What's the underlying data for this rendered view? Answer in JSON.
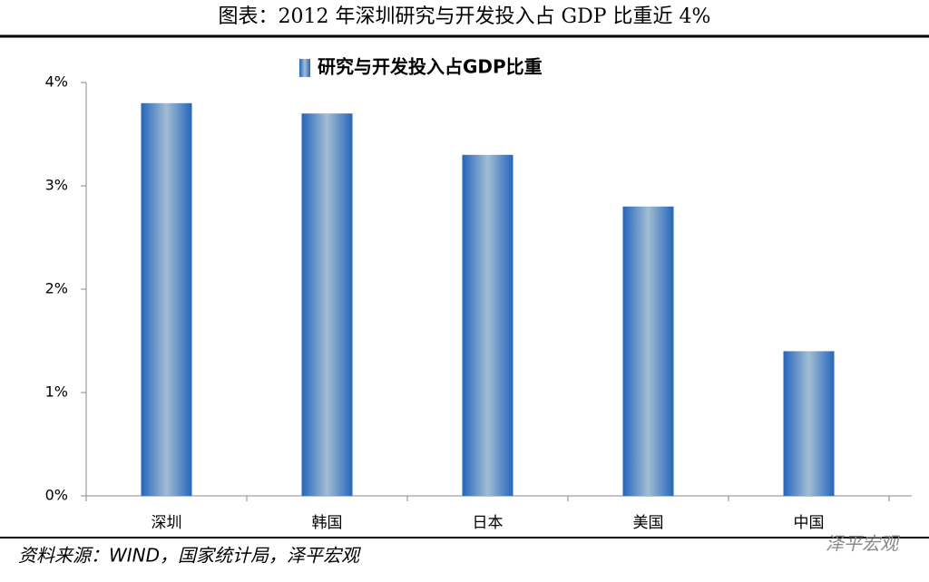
{
  "chart_data": {
    "type": "bar",
    "title": "图表：2012 年深圳研究与开发投入占 GDP 比重近 4%",
    "categories": [
      "深圳",
      "韩国",
      "日本",
      "美国",
      "中国"
    ],
    "series": [
      {
        "name": "研究与开发投入占GDP比重",
        "color": "#2e6fbf",
        "values": [
          3.8,
          3.7,
          3.3,
          2.8,
          1.4
        ]
      }
    ],
    "ylim": [
      0,
      4
    ],
    "yticks": [
      {
        "value": 0,
        "label": "0%"
      },
      {
        "value": 1,
        "label": "1%"
      },
      {
        "value": 2,
        "label": "2%"
      },
      {
        "value": 3,
        "label": "3%"
      },
      {
        "value": 4,
        "label": "4%"
      }
    ],
    "legend": "top",
    "source": "资料来源：WIND，国家统计局，泽平宏观",
    "watermark": "泽平宏观"
  }
}
